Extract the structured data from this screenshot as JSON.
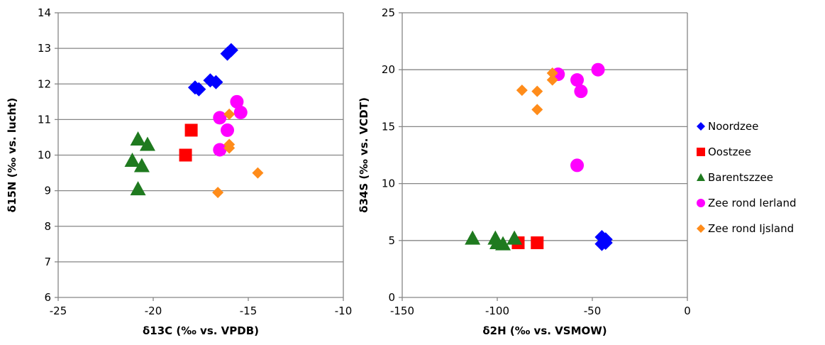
{
  "colors": {
    "Noordzee": "#0000ff",
    "Oostzee": "#ff0000",
    "Barentszzee": "#1f7a1f",
    "Zee rond Ierland": "#ff00ff",
    "Zee rond Ijsland": "#ff8c1a"
  },
  "markers": {
    "Noordzee": "diamond",
    "Oostzee": "square",
    "Barentszzee": "triangle",
    "Zee rond Ierland": "circle",
    "Zee rond Ijsland": "diamond-small"
  },
  "legend": {
    "items": [
      {
        "name": "Noordzee"
      },
      {
        "name": "Oostzee"
      },
      {
        "name": "Barentszzee"
      },
      {
        "name": "Zee rond Ierland"
      },
      {
        "name": "Zee rond Ijsland"
      }
    ],
    "placement": "right"
  },
  "chart_data": [
    {
      "type": "scatter",
      "xlabel": "δ13C (‰ vs. VPDB)",
      "ylabel": "δ15N (‰ vs. lucht)",
      "xlim": [
        -25,
        -10
      ],
      "ylim": [
        6,
        14
      ],
      "xticks": [
        -25,
        -20,
        -15,
        -10
      ],
      "yticks": [
        6,
        7,
        8,
        9,
        10,
        11,
        12,
        13,
        14
      ],
      "grid": "horizontal",
      "series": [
        {
          "name": "Noordzee",
          "points": [
            [
              -17.8,
              11.9
            ],
            [
              -17.6,
              11.85
            ],
            [
              -17.0,
              12.1
            ],
            [
              -16.7,
              12.05
            ],
            [
              -16.1,
              12.85
            ],
            [
              -15.9,
              12.95
            ]
          ]
        },
        {
          "name": "Oostzee",
          "points": [
            [
              -18.0,
              10.7
            ],
            [
              -18.3,
              10.0
            ]
          ]
        },
        {
          "name": "Barentszzee",
          "points": [
            [
              -20.8,
              10.45
            ],
            [
              -20.3,
              10.3
            ],
            [
              -21.1,
              9.85
            ],
            [
              -20.6,
              9.7
            ],
            [
              -20.8,
              9.05
            ]
          ]
        },
        {
          "name": "Zee rond Ierland",
          "points": [
            [
              -15.6,
              11.5
            ],
            [
              -15.4,
              11.2
            ],
            [
              -16.5,
              11.05
            ],
            [
              -16.1,
              10.7
            ],
            [
              -16.5,
              10.15
            ]
          ]
        },
        {
          "name": "Zee rond Ijsland",
          "points": [
            [
              -16.0,
              11.15
            ],
            [
              -16.0,
              10.3
            ],
            [
              -16.0,
              10.2
            ],
            [
              -14.5,
              9.5
            ],
            [
              -16.6,
              8.95
            ]
          ]
        }
      ]
    },
    {
      "type": "scatter",
      "xlabel": "δ2H (‰ vs. VSMOW)",
      "ylabel": "δ34S (‰ vs. VCDT)",
      "xlim": [
        -150,
        0
      ],
      "ylim": [
        0,
        25
      ],
      "xticks": [
        -150,
        -100,
        -50,
        0
      ],
      "yticks": [
        0,
        5,
        10,
        15,
        20,
        25
      ],
      "grid": "horizontal",
      "series": [
        {
          "name": "Noordzee",
          "points": [
            [
              -45,
              5.3
            ],
            [
              -43,
              5.1
            ],
            [
              -45,
              4.7
            ],
            [
              -43,
              4.8
            ]
          ]
        },
        {
          "name": "Oostzee",
          "points": [
            [
              -89,
              4.8
            ],
            [
              -79,
              4.8
            ]
          ]
        },
        {
          "name": "Barentszzee",
          "points": [
            [
              -113,
              5.2
            ],
            [
              -101,
              5.2
            ],
            [
              -91,
              5.2
            ],
            [
              -100,
              4.8
            ],
            [
              -97,
              4.7
            ]
          ]
        },
        {
          "name": "Zee rond Ierland",
          "points": [
            [
              -47,
              20.0
            ],
            [
              -68,
              19.6
            ],
            [
              -58,
              19.1
            ],
            [
              -56,
              18.1
            ],
            [
              -58,
              11.6
            ]
          ]
        },
        {
          "name": "Zee rond Ijsland",
          "points": [
            [
              -71,
              19.7
            ],
            [
              -71,
              19.1
            ],
            [
              -87,
              18.2
            ],
            [
              -79,
              18.1
            ],
            [
              -79,
              16.5
            ]
          ]
        }
      ]
    }
  ]
}
